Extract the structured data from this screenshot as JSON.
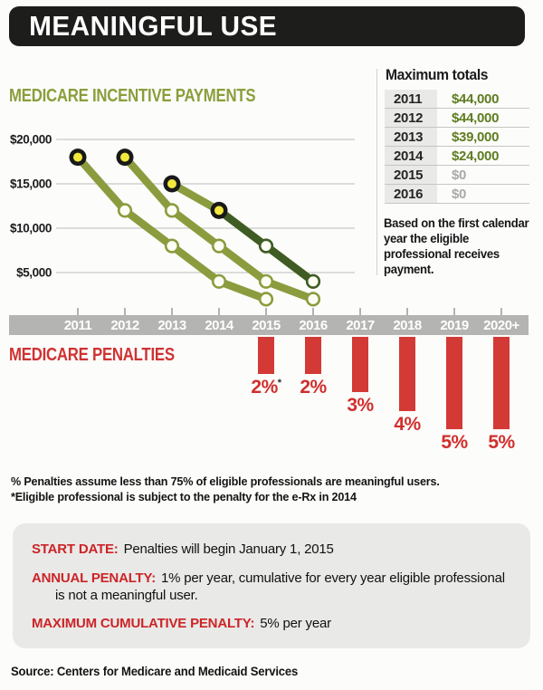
{
  "title": "MEANINGFUL USE",
  "incentive": {
    "heading": "MEDICARE INCENTIVE PAYMENTS"
  },
  "max_totals": {
    "heading": "Maximum totals",
    "rows": [
      {
        "year": "2011",
        "amount": "$44,000",
        "muted": false
      },
      {
        "year": "2012",
        "amount": "$44,000",
        "muted": false
      },
      {
        "year": "2013",
        "amount": "$39,000",
        "muted": false
      },
      {
        "year": "2014",
        "amount": "$24,000",
        "muted": false
      },
      {
        "year": "2015",
        "amount": "$0",
        "muted": true
      },
      {
        "year": "2016",
        "amount": "$0",
        "muted": true
      }
    ],
    "note": "Based on the first calendar year the eligible professional receives payment."
  },
  "timeline": {
    "years": [
      "2011",
      "2012",
      "2013",
      "2014",
      "2015",
      "2016",
      "2017",
      "2018",
      "2019",
      "2020+"
    ]
  },
  "penalties": {
    "heading": "MEDICARE PENALTIES",
    "asterisk_symbol": "*",
    "bars": [
      {
        "year": "2015",
        "label": "2%",
        "percent": 2,
        "asterisk": true
      },
      {
        "year": "2016",
        "label": "2%",
        "percent": 2,
        "asterisk": false
      },
      {
        "year": "2017",
        "label": "3%",
        "percent": 3,
        "asterisk": false
      },
      {
        "year": "2018",
        "label": "4%",
        "percent": 4,
        "asterisk": false
      },
      {
        "year": "2019",
        "label": "5%",
        "percent": 5,
        "asterisk": false
      },
      {
        "year": "2020+",
        "label": "5%",
        "percent": 5,
        "asterisk": false
      }
    ]
  },
  "footnotes": [
    "% Penalties assume less than 75% of eligible professionals are meaningful users.",
    "*Eligible professional is subject to the penalty for the e-Rx in 2014"
  ],
  "info_box": {
    "items": [
      {
        "label": "START DATE:",
        "text": "Penalties will begin January 1, 2015"
      },
      {
        "label": "ANNUAL PENALTY:",
        "text": "1% per year, cumulative for every year eligible professional is not a meaningful user."
      },
      {
        "label": "MAXIMUM CUMULATIVE PENALTY:",
        "text": "5% per year"
      }
    ]
  },
  "source": "Source: Centers for Medicare and Medicaid Services",
  "chart_data": {
    "type": "line",
    "title": "MEDICARE INCENTIVE PAYMENTS",
    "xlabel": "",
    "ylabel": "",
    "ylim": [
      0,
      20000
    ],
    "grid": true,
    "x_tick_years": [
      "2011",
      "2012",
      "2013",
      "2014",
      "2015",
      "2016",
      "2017",
      "2018",
      "2019",
      "2020+"
    ],
    "y_ticks": [
      {
        "label": "$20,000",
        "value": 20000
      },
      {
        "label": "$15,000",
        "value": 15000
      },
      {
        "label": "$10,000",
        "value": 10000
      },
      {
        "label": "$5,000",
        "value": 5000
      }
    ],
    "series": [
      {
        "name": "first-payment-2011",
        "color": "#8a9c3e",
        "values": [
          [
            2011,
            18000
          ],
          [
            2012,
            12000
          ],
          [
            2013,
            8000
          ],
          [
            2014,
            4000
          ],
          [
            2015,
            2000
          ]
        ]
      },
      {
        "name": "first-payment-2012",
        "color": "#8a9c3e",
        "values": [
          [
            2012,
            18000
          ],
          [
            2013,
            12000
          ],
          [
            2014,
            8000
          ],
          [
            2015,
            4000
          ],
          [
            2016,
            2000
          ]
        ]
      },
      {
        "name": "first-payment-2013",
        "color": "#8a9c3e",
        "values": [
          [
            2013,
            15000
          ],
          [
            2014,
            12000
          ],
          [
            2015,
            8000
          ],
          [
            2016,
            4000
          ]
        ]
      },
      {
        "name": "first-payment-2014",
        "color": "#3e5c24",
        "values": [
          [
            2014,
            12000
          ],
          [
            2015,
            8000
          ],
          [
            2016,
            4000
          ]
        ]
      }
    ],
    "marker_note": "first point of each series marked yellow with black ring; later points white with line-color ring"
  },
  "colors": {
    "olive_green": "#8a9c3e",
    "dark_green": "#3e5c24",
    "heading_green": "#8a9e3b",
    "table_green": "#5f7d20",
    "red": "#d02f2d",
    "bar_red": "#d33a35",
    "timeline_gray": "#b4b4b2",
    "box_gray": "#e9e9e7",
    "marker_yellow": "#f3e93c",
    "title_black": "#1d1d1b",
    "muted_gray": "#a9a9a7"
  }
}
